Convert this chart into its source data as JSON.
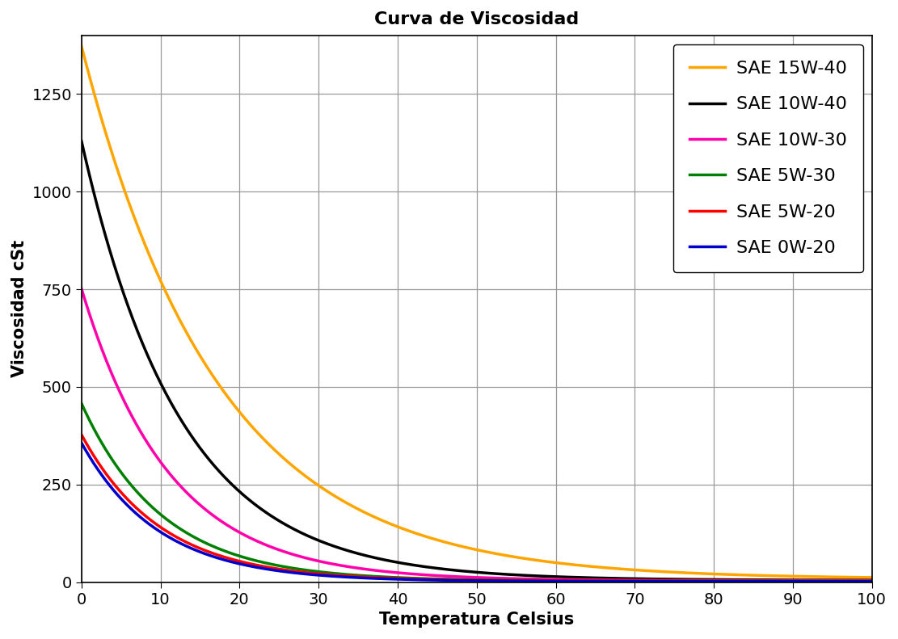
{
  "title": "Curva de Viscosidad",
  "xlabel": "Temperatura Celsius",
  "ylabel": "Viscosidad cSt",
  "xlim": [
    0,
    100
  ],
  "ylim": [
    0,
    1400
  ],
  "xticks": [
    0,
    10,
    20,
    30,
    40,
    50,
    60,
    70,
    80,
    90,
    100
  ],
  "yticks": [
    0,
    250,
    500,
    750,
    1000,
    1250
  ],
  "series": [
    {
      "label": "SAE 15W-40",
      "color": "#FFA500",
      "a": 1365,
      "b": 0.058,
      "c": 8
    },
    {
      "label": "SAE 10W-40",
      "color": "#000000",
      "a": 1125,
      "b": 0.08,
      "c": 5
    },
    {
      "label": "SAE 10W-30",
      "color": "#FF00AA",
      "a": 748,
      "b": 0.09,
      "c": 4
    },
    {
      "label": "SAE 5W-30",
      "color": "#008000",
      "a": 455,
      "b": 0.098,
      "c": 3
    },
    {
      "label": "SAE 5W-20",
      "color": "#FF0000",
      "a": 375,
      "b": 0.1,
      "c": 3
    },
    {
      "label": "SAE 0W-20",
      "color": "#0000CC",
      "a": 355,
      "b": 0.103,
      "c": 2
    }
  ],
  "title_fontsize": 16,
  "label_fontsize": 15,
  "tick_fontsize": 14,
  "legend_fontsize": 16,
  "line_width": 2.5,
  "background_color": "#ffffff",
  "grid_color": "#999999"
}
